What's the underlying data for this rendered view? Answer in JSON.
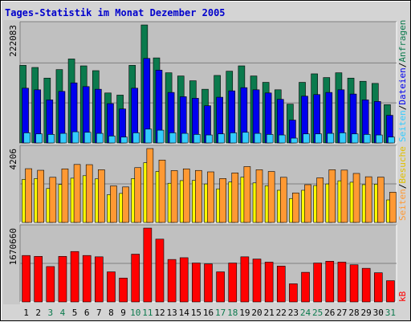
{
  "chart_data": {
    "type": "bar",
    "title": "Tages-Statistik im Monat Dezember 2005",
    "categories": [
      "1",
      "2",
      "3",
      "4",
      "5",
      "6",
      "7",
      "8",
      "9",
      "10",
      "11",
      "12",
      "13",
      "14",
      "15",
      "16",
      "17",
      "18",
      "19",
      "20",
      "21",
      "22",
      "23",
      "24",
      "25",
      "26",
      "27",
      "28",
      "29",
      "30",
      "31"
    ],
    "weekend_days": [
      3,
      4,
      10,
      11,
      17,
      18,
      24,
      25,
      31
    ],
    "panels": [
      {
        "id": "top",
        "max_label": "222083",
        "ylim": [
          0,
          222083
        ],
        "series": [
          {
            "name": "Anfragen",
            "color": "#0b7a4d",
            "values": [
              146000,
              142000,
              122000,
              138000,
              158000,
              145000,
              136000,
              94000,
              90000,
              146000,
              222000,
              160000,
              132000,
              126000,
              117000,
              101000,
              127000,
              135000,
              145000,
              126000,
              114000,
              100000,
              73000,
              114000,
              130000,
              123000,
              132000,
              122000,
              116000,
              112000,
              72000
            ]
          },
          {
            "name": "Dateien",
            "color": "#0000ee",
            "values": [
              103000,
              100000,
              81000,
              97000,
              113000,
              106000,
              101000,
              74000,
              64000,
              103000,
              159000,
              137000,
              95000,
              87000,
              84000,
              70000,
              86000,
              98000,
              104000,
              100000,
              94000,
              82000,
              43000,
              88000,
              91000,
              95000,
              100000,
              92000,
              81000,
              78000,
              52000
            ]
          },
          {
            "name": "Seiten",
            "color": "#33ccff",
            "values": [
              19000,
              17000,
              16000,
              18000,
              21000,
              20000,
              18000,
              13000,
              11000,
              19000,
              26000,
              24000,
              19000,
              18000,
              16000,
              15000,
              17000,
              19000,
              20000,
              18000,
              16000,
              15000,
              9000,
              17000,
              17000,
              18000,
              19000,
              17000,
              16000,
              15000,
              11000
            ]
          }
        ]
      },
      {
        "id": "middle",
        "max_label": "4206",
        "ylim": [
          0,
          4206
        ],
        "series": [
          {
            "name": "Besuche",
            "color": "#ffff00",
            "values": [
              2450,
              2500,
              1930,
              2160,
              2520,
              2660,
              2480,
              1580,
              1650,
              2500,
              3400,
              2900,
              2230,
              2380,
              2390,
              2190,
              1910,
              2300,
              2580,
              2250,
              2090,
              1830,
              1360,
              1830,
              2100,
              2190,
              2370,
              2290,
              2150,
              2180,
              1280
            ]
          },
          {
            "name": "Seiten",
            "color": "#ff9933",
            "values": [
              3060,
              2970,
              2570,
              3050,
              3300,
              3290,
              3000,
              2080,
              2020,
              3120,
              4206,
              3550,
              2950,
              3050,
              2960,
              2880,
              2500,
              2820,
              3180,
              3000,
              2900,
              2570,
              1680,
              2150,
              2540,
              3000,
              2980,
              2790,
              2600,
              2580,
              1720
            ]
          }
        ]
      },
      {
        "id": "bottom",
        "max_label": "1670660",
        "ylim": [
          0,
          1670660
        ],
        "series": [
          {
            "name": "kB",
            "color": "#ff0000",
            "values": [
              1050000,
              1030000,
              800000,
              1030000,
              1140000,
              1050000,
              1020000,
              680000,
              540000,
              1080000,
              1670000,
              1420000,
              960000,
              1000000,
              880000,
              860000,
              680000,
              880000,
              1020000,
              970000,
              900000,
              810000,
              410000,
              670000,
              880000,
              920000,
              900000,
              840000,
              760000,
              660000,
              480000
            ]
          }
        ]
      }
    ],
    "right_labels": [
      {
        "text": "Anfragen",
        "color": "#0b7a4d"
      },
      {
        "text": "/",
        "color": "#000000"
      },
      {
        "text": "Dateien",
        "color": "#0000ee"
      },
      {
        "text": "/",
        "color": "#000000"
      },
      {
        "text": "Seiten",
        "color": "#33ccff"
      },
      {
        "text": "/",
        "color": "#000000"
      },
      {
        "text": "Besuche",
        "color": "#e0c000"
      },
      {
        "text": "/",
        "color": "#000000"
      },
      {
        "text": "Seiten",
        "color": "#ff9933"
      },
      {
        "text": "kB",
        "color": "#ff0000"
      }
    ],
    "colors": {
      "title": "#0000cc",
      "plot_bg": "#c0c0c0",
      "frame_bg": "#d4d4d4",
      "weekday_label": "#000000",
      "weekend_label": "#0b7a4d",
      "gridline": "#808080"
    }
  }
}
